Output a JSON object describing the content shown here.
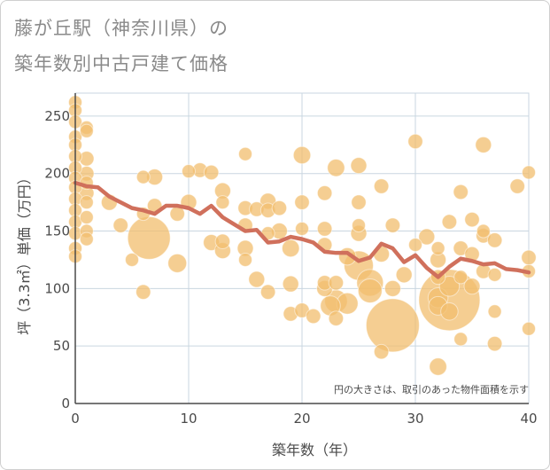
{
  "title": {
    "line1": "藤が丘駅（神奈川県）の",
    "line2": "築年数別中古戸建て価格"
  },
  "colors": {
    "bubble": "#f2bd6d",
    "line": "#d0705c",
    "grid": "#c9d6e0",
    "axis": "#4a4a4a"
  },
  "chart_data": {
    "type": "scatter",
    "xlabel": "築年数（年）",
    "ylabel": "坪（3.3㎡）単価（万円）",
    "xlim": [
      0,
      40
    ],
    "ylim": [
      0,
      270
    ],
    "xticks": [
      0,
      10,
      20,
      30,
      40
    ],
    "yticks": [
      0,
      50,
      100,
      150,
      200,
      250
    ],
    "grid": true,
    "annotation": "円の大きさは、取引のあった物件面積を示す",
    "bubbles": [
      {
        "x": 0,
        "y": 262,
        "s": 1
      },
      {
        "x": 0,
        "y": 255,
        "s": 1
      },
      {
        "x": 0,
        "y": 245,
        "s": 1
      },
      {
        "x": 0,
        "y": 232,
        "s": 1
      },
      {
        "x": 0,
        "y": 225,
        "s": 1
      },
      {
        "x": 0,
        "y": 215,
        "s": 1
      },
      {
        "x": 0,
        "y": 205,
        "s": 1
      },
      {
        "x": 0,
        "y": 196,
        "s": 1
      },
      {
        "x": 0,
        "y": 188,
        "s": 1
      },
      {
        "x": 0,
        "y": 178,
        "s": 1
      },
      {
        "x": 0,
        "y": 168,
        "s": 1
      },
      {
        "x": 0,
        "y": 158,
        "s": 1
      },
      {
        "x": 0,
        "y": 148,
        "s": 1
      },
      {
        "x": 0,
        "y": 135,
        "s": 1
      },
      {
        "x": 0,
        "y": 128,
        "s": 1
      },
      {
        "x": 1,
        "y": 240,
        "s": 1
      },
      {
        "x": 1,
        "y": 237,
        "s": 1
      },
      {
        "x": 1,
        "y": 213,
        "s": 1.1
      },
      {
        "x": 1,
        "y": 200,
        "s": 1.1
      },
      {
        "x": 1,
        "y": 192,
        "s": 1
      },
      {
        "x": 1,
        "y": 183,
        "s": 1.1
      },
      {
        "x": 1,
        "y": 175,
        "s": 1
      },
      {
        "x": 1,
        "y": 162,
        "s": 1
      },
      {
        "x": 1,
        "y": 150,
        "s": 1
      },
      {
        "x": 1,
        "y": 143,
        "s": 1
      },
      {
        "x": 3,
        "y": 175,
        "s": 1.2
      },
      {
        "x": 4,
        "y": 155,
        "s": 1.1
      },
      {
        "x": 5,
        "y": 125,
        "s": 1
      },
      {
        "x": 6,
        "y": 197,
        "s": 1
      },
      {
        "x": 6,
        "y": 165,
        "s": 1
      },
      {
        "x": 6,
        "y": 97,
        "s": 1.1
      },
      {
        "x": 6.5,
        "y": 144,
        "s": 3.2
      },
      {
        "x": 7,
        "y": 197,
        "s": 1.2
      },
      {
        "x": 7,
        "y": 172,
        "s": 1.1
      },
      {
        "x": 9,
        "y": 122,
        "s": 1.4
      },
      {
        "x": 9,
        "y": 165,
        "s": 1.1
      },
      {
        "x": 10,
        "y": 202,
        "s": 1
      },
      {
        "x": 10,
        "y": 175,
        "s": 1.2
      },
      {
        "x": 11,
        "y": 203,
        "s": 1.1
      },
      {
        "x": 12,
        "y": 201,
        "s": 1.1
      },
      {
        "x": 12,
        "y": 140,
        "s": 1.2
      },
      {
        "x": 13,
        "y": 185,
        "s": 1.2
      },
      {
        "x": 13,
        "y": 175,
        "s": 1
      },
      {
        "x": 13,
        "y": 141,
        "s": 1.1
      },
      {
        "x": 13,
        "y": 133,
        "s": 1.2
      },
      {
        "x": 15,
        "y": 217,
        "s": 1
      },
      {
        "x": 15,
        "y": 170,
        "s": 1.1
      },
      {
        "x": 15,
        "y": 155,
        "s": 1.1
      },
      {
        "x": 15,
        "y": 135,
        "s": 1.2
      },
      {
        "x": 15,
        "y": 125,
        "s": 1
      },
      {
        "x": 16,
        "y": 169,
        "s": 1.1
      },
      {
        "x": 16,
        "y": 108,
        "s": 1.2
      },
      {
        "x": 17,
        "y": 176,
        "s": 1.2
      },
      {
        "x": 17,
        "y": 168,
        "s": 1.1
      },
      {
        "x": 17,
        "y": 148,
        "s": 1
      },
      {
        "x": 17,
        "y": 97,
        "s": 1.1
      },
      {
        "x": 18,
        "y": 170,
        "s": 1.1
      },
      {
        "x": 18,
        "y": 150,
        "s": 1.2
      },
      {
        "x": 19,
        "y": 135,
        "s": 1.3
      },
      {
        "x": 19,
        "y": 104,
        "s": 1.2
      },
      {
        "x": 19,
        "y": 78,
        "s": 1.1
      },
      {
        "x": 20,
        "y": 216,
        "s": 1.3
      },
      {
        "x": 20,
        "y": 175,
        "s": 1.1
      },
      {
        "x": 20,
        "y": 152,
        "s": 1
      },
      {
        "x": 20,
        "y": 81,
        "s": 1.1
      },
      {
        "x": 21,
        "y": 76,
        "s": 1.1
      },
      {
        "x": 22,
        "y": 183,
        "s": 1.1
      },
      {
        "x": 22,
        "y": 152,
        "s": 1.1
      },
      {
        "x": 22,
        "y": 138,
        "s": 1.1
      },
      {
        "x": 22,
        "y": 105,
        "s": 1.1
      },
      {
        "x": 22,
        "y": 100,
        "s": 1.2
      },
      {
        "x": 22.5,
        "y": 85,
        "s": 1.5
      },
      {
        "x": 23,
        "y": 205,
        "s": 1.3
      },
      {
        "x": 23,
        "y": 105,
        "s": 1.1
      },
      {
        "x": 23,
        "y": 89,
        "s": 1.7
      },
      {
        "x": 23,
        "y": 74,
        "s": 1.1
      },
      {
        "x": 24,
        "y": 128,
        "s": 1.3
      },
      {
        "x": 24,
        "y": 87,
        "s": 1.6
      },
      {
        "x": 25,
        "y": 207,
        "s": 1.2
      },
      {
        "x": 25,
        "y": 175,
        "s": 1.1
      },
      {
        "x": 25,
        "y": 155,
        "s": 1
      },
      {
        "x": 25,
        "y": 148,
        "s": 1.2
      },
      {
        "x": 25,
        "y": 120,
        "s": 2.2
      },
      {
        "x": 26,
        "y": 105,
        "s": 2
      },
      {
        "x": 26,
        "y": 98,
        "s": 1.8
      },
      {
        "x": 27,
        "y": 189,
        "s": 1.1
      },
      {
        "x": 27,
        "y": 130,
        "s": 1.2
      },
      {
        "x": 27,
        "y": 45,
        "s": 1.1
      },
      {
        "x": 28,
        "y": 155,
        "s": 1.1
      },
      {
        "x": 28,
        "y": 100,
        "s": 1.2
      },
      {
        "x": 28,
        "y": 68,
        "s": 4
      },
      {
        "x": 29,
        "y": 112,
        "s": 1.2
      },
      {
        "x": 30,
        "y": 228,
        "s": 1.1
      },
      {
        "x": 30,
        "y": 138,
        "s": 1
      },
      {
        "x": 31,
        "y": 145,
        "s": 1.2
      },
      {
        "x": 32,
        "y": 135,
        "s": 1
      },
      {
        "x": 32,
        "y": 125,
        "s": 1.2
      },
      {
        "x": 32,
        "y": 110,
        "s": 1.1
      },
      {
        "x": 32,
        "y": 92,
        "s": 1.5
      },
      {
        "x": 32,
        "y": 85,
        "s": 1.4
      },
      {
        "x": 32,
        "y": 32,
        "s": 1.3
      },
      {
        "x": 33,
        "y": 158,
        "s": 1.1
      },
      {
        "x": 33,
        "y": 102,
        "s": 1.5
      },
      {
        "x": 33,
        "y": 80,
        "s": 1.3
      },
      {
        "x": 33,
        "y": 90,
        "s": 4.6
      },
      {
        "x": 34,
        "y": 184,
        "s": 1.1
      },
      {
        "x": 34,
        "y": 135,
        "s": 1.1
      },
      {
        "x": 34,
        "y": 110,
        "s": 1
      },
      {
        "x": 34,
        "y": 56,
        "s": 1
      },
      {
        "x": 35,
        "y": 160,
        "s": 1.1
      },
      {
        "x": 35,
        "y": 130,
        "s": 1.1
      },
      {
        "x": 35,
        "y": 102,
        "s": 1.2
      },
      {
        "x": 36,
        "y": 225,
        "s": 1.2
      },
      {
        "x": 36,
        "y": 150,
        "s": 1
      },
      {
        "x": 36,
        "y": 146,
        "s": 1.1
      },
      {
        "x": 36,
        "y": 115,
        "s": 1.1
      },
      {
        "x": 37,
        "y": 142,
        "s": 1.1
      },
      {
        "x": 37,
        "y": 112,
        "s": 1
      },
      {
        "x": 37,
        "y": 80,
        "s": 1
      },
      {
        "x": 37,
        "y": 52,
        "s": 1.1
      },
      {
        "x": 39,
        "y": 189,
        "s": 1.1
      },
      {
        "x": 40,
        "y": 201,
        "s": 1
      },
      {
        "x": 40,
        "y": 127,
        "s": 1.1
      },
      {
        "x": 40,
        "y": 115,
        "s": 1
      },
      {
        "x": 40,
        "y": 65,
        "s": 1
      }
    ],
    "series": [
      {
        "x": [
          0,
          1,
          2,
          3,
          4,
          5,
          6,
          7,
          8,
          9,
          10,
          11,
          12,
          13,
          14,
          15,
          16,
          17,
          18,
          19,
          20,
          21,
          22,
          23,
          24,
          25,
          26,
          27,
          28,
          29,
          30,
          31,
          32,
          33,
          34,
          35,
          36,
          37,
          38,
          39,
          40
        ],
        "y": [
          192,
          189,
          188,
          180,
          175,
          170,
          168,
          165,
          172,
          172,
          170,
          165,
          172,
          162,
          156,
          150,
          151,
          140,
          141,
          145,
          143,
          140,
          132,
          131,
          131,
          124,
          127,
          139,
          135,
          123,
          129,
          118,
          110,
          119,
          126,
          124,
          121,
          122,
          117,
          116,
          114
        ]
      }
    ]
  }
}
